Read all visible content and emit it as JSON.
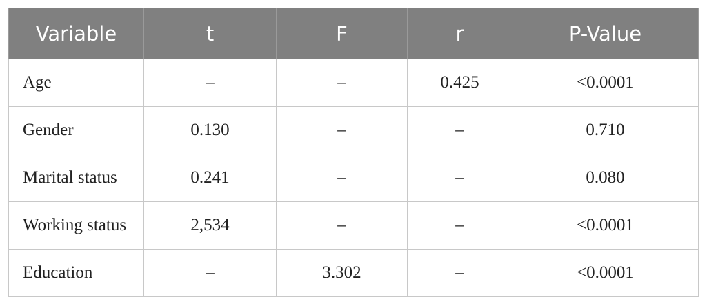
{
  "table": {
    "header": [
      "Variable",
      "t",
      "F",
      "r",
      "P-Value"
    ],
    "rows": [
      [
        "Age",
        "–",
        "–",
        "0.425",
        "<0.0001"
      ],
      [
        "Gender",
        "0.130",
        "–",
        "–",
        "0.710"
      ],
      [
        "Marital status",
        "0.241",
        "–",
        "–",
        "0.080"
      ],
      [
        "Working status",
        "2,534",
        "–",
        "–",
        "<0.0001"
      ],
      [
        "Education",
        "–",
        "3.302",
        "–",
        "<0.0001"
      ]
    ]
  }
}
